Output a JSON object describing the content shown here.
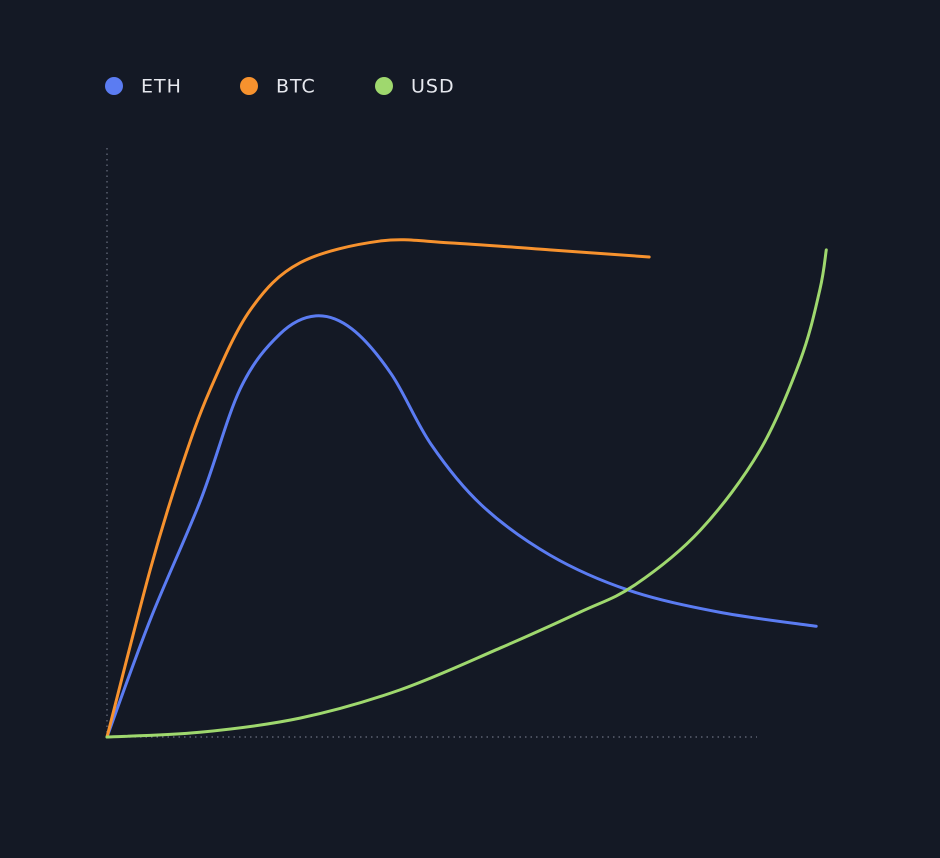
{
  "chart_data": {
    "type": "line",
    "legend": "top-left",
    "xlim": [
      0,
      100
    ],
    "ylim": [
      0,
      100
    ],
    "series": [
      {
        "name": "ETH",
        "color": "#5b7cf2",
        "x": [
          0,
          6,
          13,
          18.5,
          24,
          29,
          34,
          39.5,
          45,
          52,
          61.5,
          72.5,
          85,
          98.5
        ],
        "values": [
          0,
          19.9,
          40.2,
          59.1,
          68.4,
          71.5,
          69.3,
          61.6,
          49.7,
          39.4,
          30.9,
          24.9,
          21.2,
          18.8
        ]
      },
      {
        "name": "BTC",
        "color": "#f7922e",
        "x": [
          0,
          6,
          10.2,
          14.3,
          19.9,
          26.8,
          37.9,
          47.6,
          61.5,
          75.3
        ],
        "values": [
          0,
          28.4,
          45.3,
          58.9,
          72.5,
          80.5,
          84.2,
          83.9,
          82.7,
          81.5
        ]
      },
      {
        "name": "USD",
        "color": "#9fd86e",
        "x": [
          0,
          12.9,
          26.8,
          40.7,
          54.6,
          65.7,
          73.3,
          82.4,
          90.7,
          96.3,
          99,
          99.9
        ],
        "values": [
          0,
          0.8,
          3.2,
          8.0,
          15.1,
          21.2,
          25.8,
          35.1,
          48.7,
          64,
          75.9,
          82.7
        ]
      }
    ]
  }
}
